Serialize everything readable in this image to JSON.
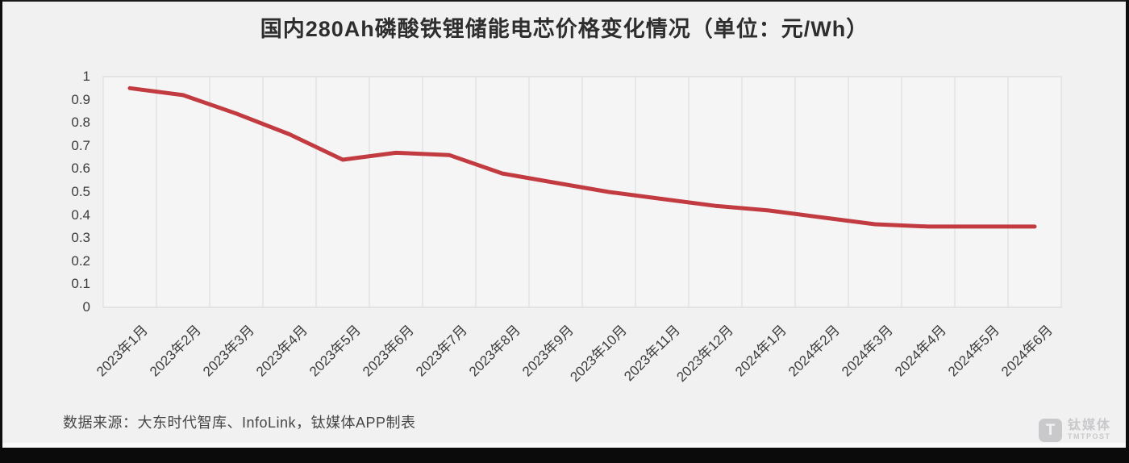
{
  "page": {
    "background": "#f1f1f2",
    "frame_color": "#0e0e0e"
  },
  "title": "国内280Ah磷酸铁锂储能电芯价格变化情况（单位：元/Wh）",
  "source_note": "数据来源：大东时代智库、InfoLink，钛媒体APP制表",
  "watermark": {
    "icon_letter": "T",
    "name_cn": "钛媒体",
    "name_en": "TMTPOST",
    "color": "#c9c9cb"
  },
  "chart_data": {
    "type": "line",
    "title": "国内280Ah磷酸铁锂储能电芯价格变化情况（单位：元/Wh）",
    "unit": "元/Wh",
    "categories": [
      "2023年1月",
      "2023年2月",
      "2023年3月",
      "2023年4月",
      "2023年5月",
      "2023年6月",
      "2023年7月",
      "2023年8月",
      "2023年9月",
      "2023年10月",
      "2023年11月",
      "2023年12月",
      "2024年1月",
      "2024年2月",
      "2024年3月",
      "2024年4月",
      "2024年5月",
      "2024年6月"
    ],
    "values": [
      0.95,
      0.92,
      0.84,
      0.75,
      0.64,
      0.67,
      0.66,
      0.58,
      0.54,
      0.5,
      0.47,
      0.44,
      0.42,
      0.39,
      0.36,
      0.35,
      0.35,
      0.35
    ],
    "ylim": [
      0,
      1
    ],
    "yticks": [
      0,
      0.1,
      0.2,
      0.3,
      0.4,
      0.5,
      0.6,
      0.7,
      0.8,
      0.9,
      1
    ],
    "ytick_labels": [
      "0",
      "0.1",
      "0.2",
      "0.3",
      "0.4",
      "0.5",
      "0.6",
      "0.7",
      "0.8",
      "0.9",
      "1"
    ],
    "xlabel": "",
    "ylabel": "",
    "legend": "none",
    "grid": "vertical-only",
    "line_color": "#c23b41",
    "gridline_color": "#d9d9d9",
    "plot_fill": "#f5f5f5",
    "plot_border_color": "#d5d5d5"
  }
}
